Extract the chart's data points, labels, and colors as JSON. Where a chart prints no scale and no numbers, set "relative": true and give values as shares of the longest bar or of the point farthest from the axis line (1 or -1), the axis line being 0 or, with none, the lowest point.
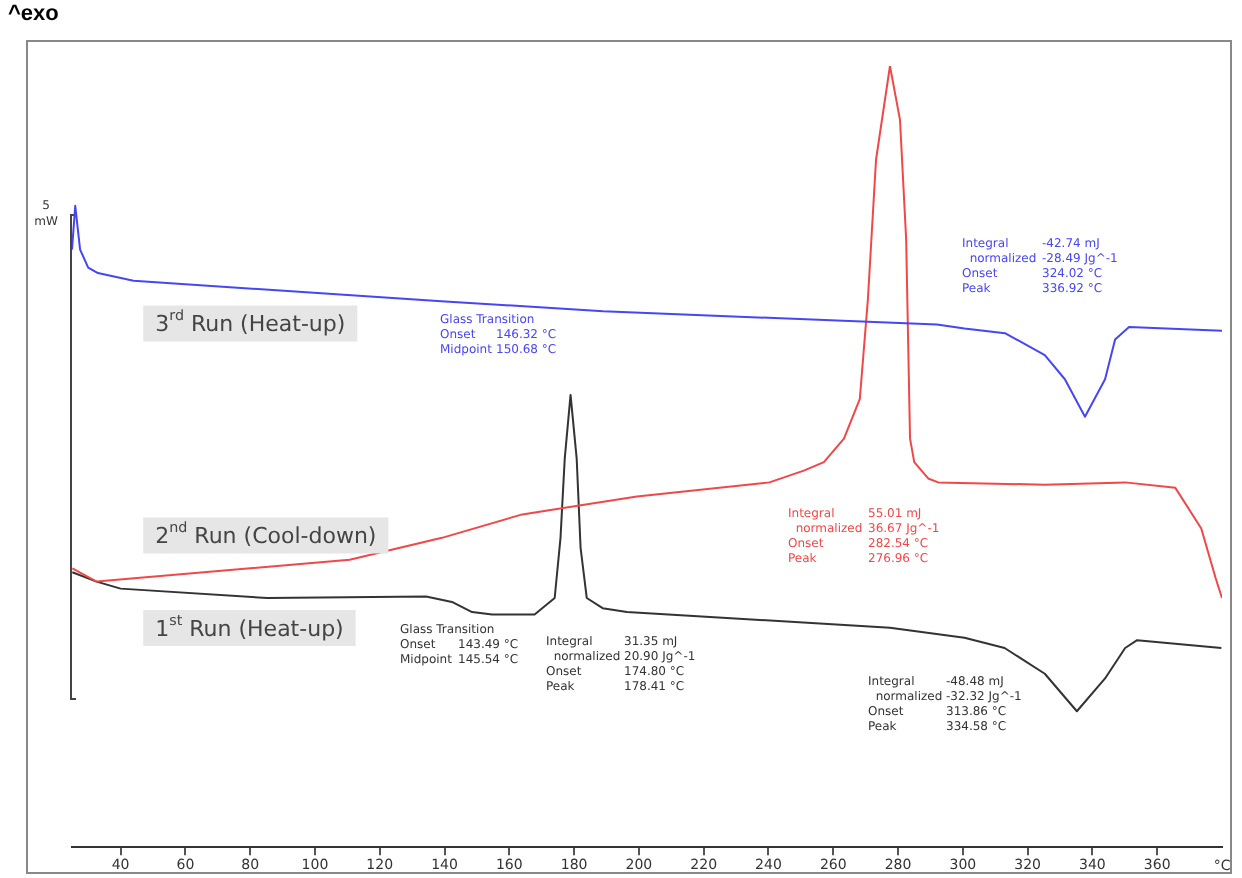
{
  "chart_data": {
    "type": "line",
    "title": "^exo",
    "xlabel": "°C",
    "annotations": [
      "5\nmW",
      "Glass Transition\nOnset\nMidpoint",
      "146.32 °C\n150.68 °C",
      "Integral\n  normalized\nOnset\nPeak",
      "-42.74 mJ\n-28.49 Jg^-1\n324.02 °C\n336.92 °C",
      "Integral\n  normalized\nOnset\nPeak",
      "55.01 mJ\n36.67 Jg^-1\n282.54 °C\n276.96 °C",
      "Glass Transition\nOnset\nMidpoint",
      "143.49 °C\n145.54 °C",
      "Integral\n  normalized\nOnset\nPeak",
      "31.35 mJ\n20.90 Jg^-1\n174.80 °C\n178.41 °C",
      "Integral\n  normalized\nOnset\nPeak",
      "-48.48 mJ\n-32.32 Jg^-1\n313.86 °C\n334.58 °C"
    ],
    "relative": true,
    "xlim": [
      25,
      380
    ],
    "xticks": [
      40,
      60,
      80,
      100,
      120,
      140,
      160,
      180,
      200,
      220,
      240,
      260,
      280,
      300,
      320,
      340,
      360
    ],
    "grid": false,
    "legend": false,
    "marker": "none",
    "line_style": "solid",
    "series": [
      {
        "name": "3$^{rd}$ Run (Heat-up)",
        "color": "#4646f5",
        "x": [
          25,
          26,
          27.5,
          30,
          33,
          44,
          139,
          189,
          292,
          300.5,
          313,
          325.3,
          331.5,
          337.7,
          343.9,
          347,
          351.3,
          380
        ],
        "values": [
          0.765,
          0.821,
          0.765,
          0.742,
          0.735,
          0.725,
          0.699,
          0.686,
          0.669,
          0.664,
          0.658,
          0.63,
          0.599,
          0.551,
          0.599,
          0.65,
          0.666,
          0.661
        ]
      },
      {
        "name": "2$^{nd}$ Run (Cool-down)",
        "color": "#f04848",
        "x": [
          25.1,
          32.6,
          110.7,
          139.2,
          164,
          199.4,
          240.3,
          250.9,
          257.1,
          263.3,
          268.2,
          270.7,
          273.2,
          277.5,
          280.6,
          282.5,
          283.7,
          285,
          289.3,
          292.4,
          325.3,
          350.1,
          365.6,
          373.6,
          378,
          380
        ],
        "values": [
          0.357,
          0.34,
          0.368,
          0.396,
          0.426,
          0.449,
          0.467,
          0.482,
          0.493,
          0.523,
          0.574,
          0.702,
          0.88,
          1,
          0.931,
          0.778,
          0.523,
          0.493,
          0.472,
          0.467,
          0.464,
          0.467,
          0.46,
          0.408,
          0.345,
          0.319
        ]
      },
      {
        "name": "1$^{st}$ Run (Heat-up)",
        "color": "#333333",
        "x": [
          25.1,
          32.6,
          40,
          85.3,
          134.3,
          142.3,
          148.5,
          154.7,
          167.8,
          174,
          175.8,
          177.1,
          178.9,
          180.8,
          182,
          183.9,
          188.8,
          196.3,
          277.5,
          300.5,
          312.9,
          325.3,
          335.2,
          343.9,
          350.1,
          353.8,
          379.8
        ],
        "values": [
          0.352,
          0.34,
          0.331,
          0.319,
          0.321,
          0.314,
          0.301,
          0.298,
          0.298,
          0.319,
          0.396,
          0.497,
          0.579,
          0.497,
          0.383,
          0.319,
          0.306,
          0.301,
          0.281,
          0.268,
          0.255,
          0.222,
          0.174,
          0.216,
          0.255,
          0.265,
          0.255
        ]
      }
    ]
  }
}
